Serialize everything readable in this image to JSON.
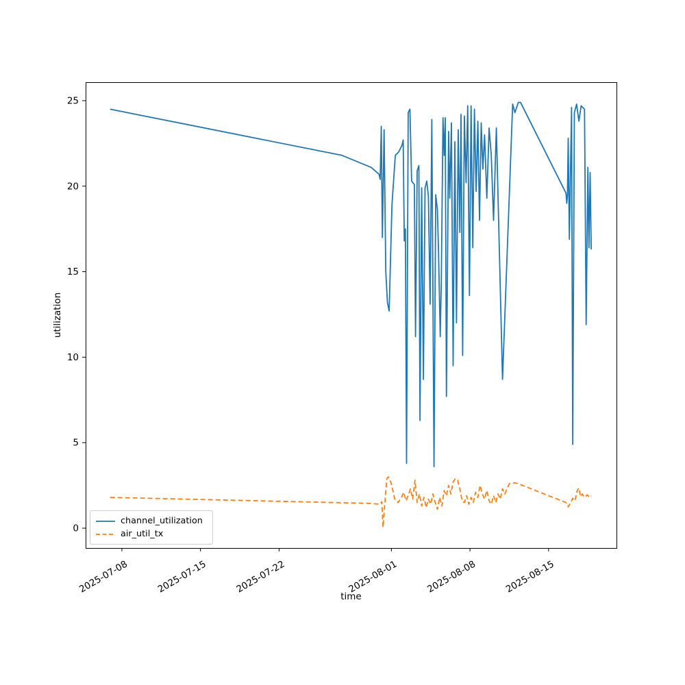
{
  "chart_data": {
    "type": "line",
    "title": "",
    "xlabel": "time",
    "ylabel": "utilization",
    "x_unit": "days since 2025-07-01 00:00",
    "xlim": [
      3.77,
      51.05
    ],
    "ylim": [
      -1.16,
      26.08
    ],
    "grid": false,
    "yticks": [
      0,
      5,
      10,
      15,
      20,
      25
    ],
    "xtick_days": [
      7,
      14,
      21,
      31,
      38,
      45
    ],
    "xtick_labels": [
      "2025-07-08",
      "2025-07-15",
      "2025-07-22",
      "2025-08-01",
      "2025-08-08",
      "2025-08-15"
    ],
    "legend": {
      "position": "lower left"
    },
    "series": [
      {
        "name": "channel_utilization",
        "color": "#1f77b4",
        "style": "solid",
        "x": [
          5.95,
          26.6,
          29.2,
          29.9,
          30.0,
          30.1,
          30.2,
          30.35,
          30.5,
          30.65,
          30.8,
          31.05,
          31.35,
          31.65,
          31.95,
          32.05,
          32.15,
          32.25,
          32.35,
          32.5,
          32.65,
          32.8,
          33.05,
          33.15,
          33.3,
          33.45,
          33.55,
          33.7,
          33.85,
          34.0,
          34.15,
          34.3,
          34.45,
          34.6,
          34.8,
          34.95,
          35.1,
          35.2,
          35.35,
          35.45,
          35.6,
          35.7,
          35.8,
          35.9,
          36.1,
          36.2,
          36.35,
          36.5,
          36.65,
          36.8,
          36.95,
          37.1,
          37.2,
          37.35,
          37.5,
          37.65,
          37.8,
          37.95,
          38.1,
          38.25,
          38.4,
          38.55,
          38.7,
          38.85,
          39.0,
          39.15,
          39.3,
          39.5,
          39.7,
          39.9,
          40.1,
          40.35,
          40.9,
          41.8,
          42.0,
          42.3,
          42.5,
          46.55,
          46.62,
          46.68,
          46.75,
          46.85,
          46.95,
          47.05,
          47.15,
          47.3,
          47.5,
          47.7,
          47.9,
          48.2,
          48.35,
          48.5,
          48.6,
          48.7,
          48.8
        ],
        "y": [
          24.5,
          21.8,
          21.1,
          20.7,
          20.4,
          23.5,
          17.0,
          23.3,
          15.0,
          13.2,
          12.7,
          18.9,
          21.8,
          22.0,
          22.4,
          22.7,
          16.8,
          17.5,
          3.8,
          24.3,
          24.5,
          20.3,
          20.1,
          11.2,
          20.9,
          21.2,
          6.3,
          19.9,
          8.7,
          19.9,
          20.3,
          19.4,
          13.1,
          23.9,
          3.6,
          19.5,
          18.6,
          16.1,
          11.2,
          14.6,
          24.0,
          21.8,
          24.0,
          7.7,
          23.2,
          19.3,
          23.7,
          9.5,
          22.6,
          12.0,
          23.3,
          17.3,
          24.2,
          10.1,
          24.1,
          20.2,
          24.7,
          13.6,
          24.7,
          16.4,
          24.5,
          19.7,
          23.8,
          18.0,
          23.7,
          21.0,
          23.0,
          19.3,
          23.4,
          21.8,
          18.0,
          23.4,
          8.7,
          24.8,
          24.3,
          24.9,
          24.9,
          19.6,
          19.0,
          19.5,
          22.8,
          16.9,
          20.8,
          24.6,
          4.9,
          24.3,
          24.8,
          23.8,
          24.7,
          24.5,
          11.9,
          21.1,
          16.4,
          20.8,
          16.3
        ]
      },
      {
        "name": "air_util_tx",
        "color": "#ff7f0e",
        "style": "dashed",
        "x": [
          5.95,
          29.0,
          30.0,
          30.15,
          30.25,
          30.4,
          30.6,
          30.75,
          31.0,
          31.3,
          31.6,
          31.9,
          32.1,
          32.3,
          32.5,
          32.7,
          32.9,
          33.1,
          33.3,
          33.5,
          33.7,
          33.9,
          34.1,
          34.3,
          34.5,
          34.7,
          34.9,
          35.1,
          35.3,
          35.5,
          35.7,
          35.9,
          36.1,
          36.3,
          36.5,
          36.7,
          36.9,
          37.1,
          37.3,
          37.5,
          37.7,
          37.9,
          38.1,
          38.3,
          38.5,
          38.7,
          38.9,
          39.1,
          39.3,
          39.5,
          39.7,
          39.9,
          40.1,
          40.3,
          40.5,
          40.7,
          40.9,
          41.1,
          41.5,
          42.0,
          42.3,
          46.55,
          46.75,
          46.95,
          47.15,
          47.35,
          47.55,
          47.7,
          47.85,
          48.0,
          48.2,
          48.45,
          48.65,
          48.8
        ],
        "y": [
          1.8,
          1.45,
          1.4,
          1.55,
          0.05,
          1.3,
          2.9,
          3.0,
          2.6,
          1.7,
          1.5,
          1.8,
          2.1,
          1.6,
          1.9,
          2.3,
          1.7,
          2.8,
          1.5,
          2.0,
          1.3,
          1.8,
          1.2,
          1.7,
          1.4,
          2.0,
          1.5,
          1.1,
          1.8,
          1.3,
          2.2,
          1.9,
          2.5,
          2.0,
          2.7,
          2.9,
          2.8,
          2.3,
          1.6,
          1.5,
          1.9,
          1.4,
          1.8,
          1.5,
          2.1,
          1.8,
          2.5,
          2.0,
          1.7,
          2.2,
          1.6,
          1.4,
          1.9,
          1.5,
          2.0,
          1.7,
          2.3,
          2.0,
          2.6,
          2.65,
          2.6,
          1.5,
          1.25,
          1.45,
          1.75,
          1.6,
          2.2,
          2.35,
          1.85,
          2.0,
          1.8,
          1.95,
          1.8,
          1.9
        ]
      }
    ],
    "axis_color": "#000000",
    "background_color": "#ffffff"
  }
}
